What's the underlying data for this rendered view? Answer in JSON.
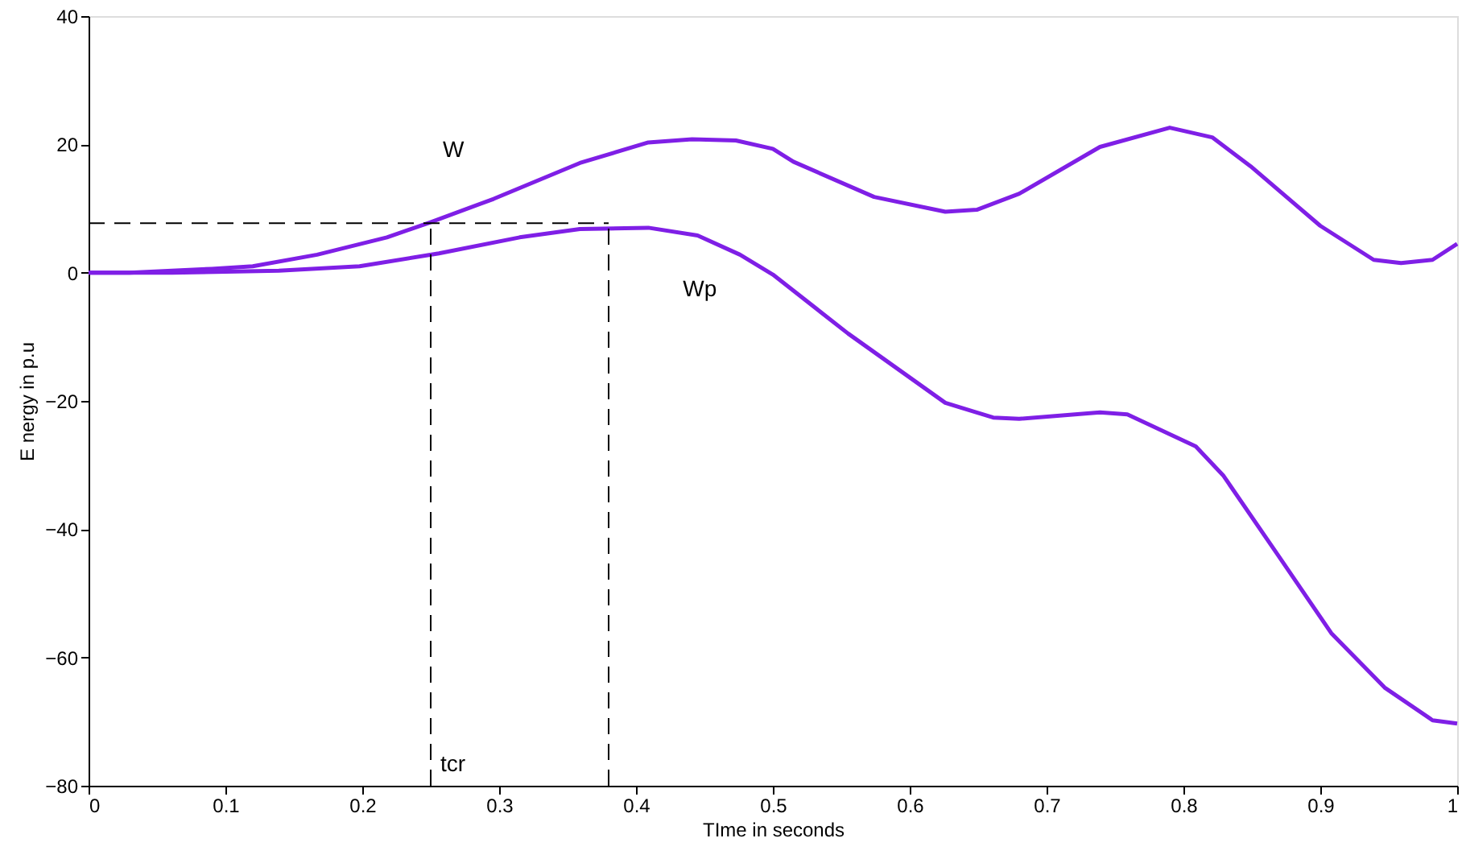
{
  "chart_data": {
    "type": "line",
    "xlabel": "TIme in seconds",
    "ylabel": "E nergy in p.u",
    "xlim": [
      0,
      1
    ],
    "xticks": [
      0,
      0.1,
      0.2,
      0.3,
      0.4,
      0.5,
      0.6,
      0.7,
      0.8,
      0.9,
      1
    ],
    "ylim": [
      -80,
      40
    ],
    "yticks": [
      -80,
      -60,
      -40,
      -20,
      0,
      20,
      40
    ],
    "grid": false,
    "marker": "none",
    "line_style": "solid",
    "series": [
      {
        "name": "W",
        "color": "#7f1fe6",
        "x": [
          0,
          0.03,
          0.061,
          0.09,
          0.12,
          0.167,
          0.218,
          0.249,
          0.296,
          0.359,
          0.409,
          0.441,
          0.473,
          0.5,
          0.515,
          0.574,
          0.626,
          0.649,
          0.68,
          0.739,
          0.79,
          0.821,
          0.849,
          0.9,
          0.939,
          0.959,
          0.982,
          1.0
        ],
        "values": [
          0,
          0,
          0.3,
          0.6,
          1.0,
          2.8,
          5.5,
          7.8,
          11.5,
          17.1,
          20.3,
          20.8,
          20.6,
          19.3,
          17.3,
          11.8,
          9.5,
          9.8,
          12.3,
          19.6,
          22.6,
          21.1,
          16.6,
          7.3,
          2.0,
          1.5,
          2.0,
          4.5
        ]
      },
      {
        "name": "Wp",
        "color": "#7f1fe6",
        "x": [
          0,
          0.061,
          0.139,
          0.198,
          0.256,
          0.315,
          0.359,
          0.409,
          0.445,
          0.476,
          0.5,
          0.555,
          0.626,
          0.661,
          0.68,
          0.739,
          0.759,
          0.809,
          0.829,
          0.868,
          0.908,
          0.947,
          0.982,
          1.0
        ],
        "values": [
          0,
          0,
          0.3,
          1.0,
          3.0,
          5.5,
          6.8,
          7.0,
          5.8,
          2.8,
          -0.3,
          -9.5,
          -20.3,
          -22.6,
          -22.8,
          -21.8,
          -22.1,
          -27.1,
          -31.6,
          -43.7,
          -56.2,
          -64.7,
          -69.8,
          -70.3
        ]
      }
    ],
    "ref_lines": [
      {
        "axis": "y",
        "value": 7.7,
        "color": "#000000",
        "line_style": "dashed"
      },
      {
        "axis": "x",
        "value": 0.25,
        "label": "tcr",
        "color": "#000000",
        "line_style": "dashed"
      },
      {
        "axis": "x",
        "value": 0.38,
        "color": "#000000",
        "line_style": "dashed"
      }
    ]
  }
}
